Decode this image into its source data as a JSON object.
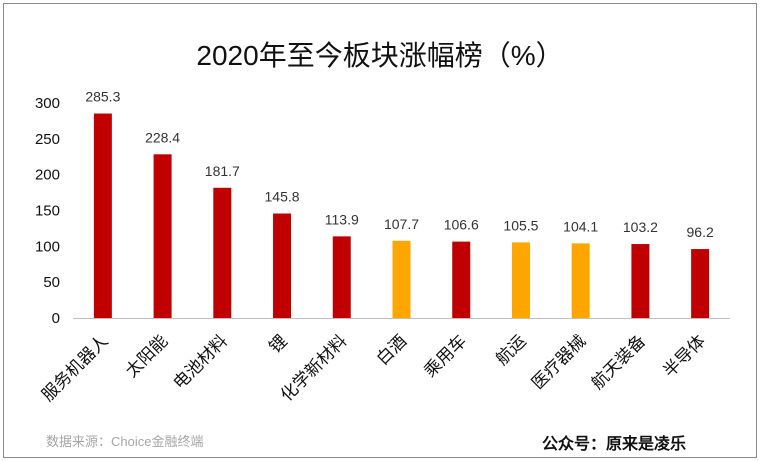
{
  "chart_data": {
    "type": "bar",
    "title": "2020年至今板块涨幅榜（%）",
    "categories": [
      "服务机器人",
      "太阳能",
      "电池材料",
      "锂",
      "化学新材料",
      "白酒",
      "乘用车",
      "航运",
      "医疗器械",
      "航天装备",
      "半导体"
    ],
    "values": [
      285.3,
      228.4,
      181.7,
      145.8,
      113.9,
      107.7,
      106.6,
      105.5,
      104.1,
      103.2,
      96.2
    ],
    "colors": [
      "#c00000",
      "#c00000",
      "#c00000",
      "#c00000",
      "#c00000",
      "#ffa500",
      "#c00000",
      "#ffa500",
      "#ffa500",
      "#c00000",
      "#c00000"
    ],
    "yticks": [
      0,
      50,
      100,
      150,
      200,
      250,
      300
    ],
    "ylim": [
      0,
      300
    ],
    "xlabel": "",
    "ylabel": "",
    "grid": false,
    "legend": "none"
  },
  "footer": {
    "source": "数据来源：Choice金融终端",
    "credit": "公众号：原来是凌乐"
  }
}
